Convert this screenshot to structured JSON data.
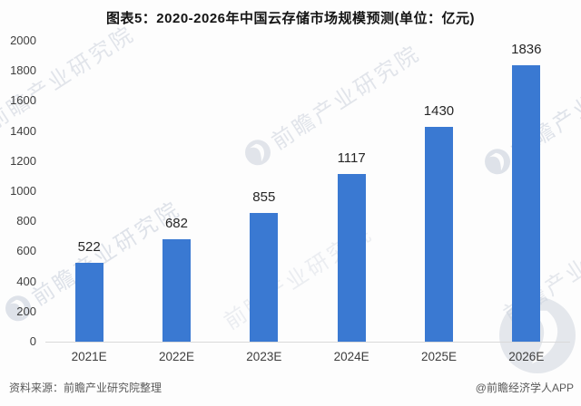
{
  "title": "图表5：2020-2026年中国云存储市场规模预测(单位：亿元)",
  "chart_data": {
    "type": "bar",
    "title": "图表5：2020-2026年中国云存储市场规模预测(单位：亿元)",
    "unit": "亿元",
    "categories": [
      "2021E",
      "2022E",
      "2023E",
      "2024E",
      "2025E",
      "2026E"
    ],
    "values": [
      522,
      682,
      855,
      1117,
      1430,
      1836
    ],
    "xlabel": "",
    "ylabel": "",
    "ylim": [
      0,
      2000
    ],
    "ytick_step": 200,
    "grid": false,
    "legend": "none"
  },
  "footer": {
    "source": "资料来源：前瞻产业研究院整理",
    "credit": "@前瞻经济学人APP"
  },
  "watermark": {
    "text": "前瞻产业研究院"
  },
  "colors": {
    "bar": "#3a79d2",
    "axis_line": "#d9d9d9",
    "tick_label": "#3f3f3f",
    "value_label": "#262626",
    "title_text": "#141414",
    "footer_text": "#595959",
    "watermark": "#c6cdd9"
  }
}
